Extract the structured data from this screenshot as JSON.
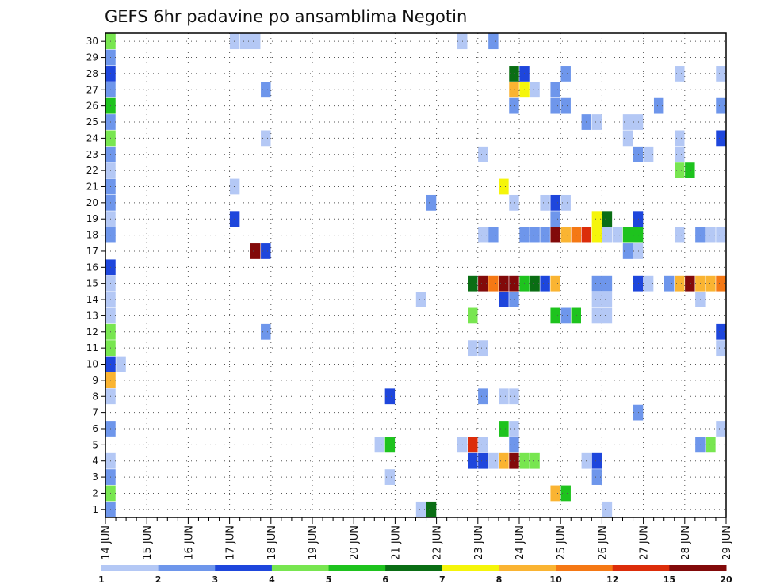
{
  "chart_data": {
    "type": "heatmap",
    "title": "GEFS 6hr padavine po ansamblima Negotin",
    "xlabel": "",
    "ylabel": "",
    "x_ticks": [
      "14 JUN",
      "15 JUN",
      "16 JUN",
      "17 JUN",
      "18 JUN",
      "19 JUN",
      "20 JUN",
      "21 JUN",
      "22 JUN",
      "23 JUN",
      "24 JUN",
      "25 JUN",
      "26 JUN",
      "27 JUN",
      "28 JUN",
      "29 JUN"
    ],
    "y_ticks": [
      "1",
      "2",
      "3",
      "4",
      "5",
      "6",
      "7",
      "8",
      "9",
      "10",
      "11",
      "12",
      "13",
      "14",
      "15",
      "16",
      "17",
      "18",
      "19",
      "20",
      "21",
      "22",
      "23",
      "24",
      "25",
      "26",
      "27",
      "28",
      "29",
      "30"
    ],
    "x_step_hours": 6,
    "grid": true,
    "colorbar": {
      "position": "bottom",
      "labels": [
        "1",
        "2",
        "3",
        "4",
        "5",
        "6",
        "7",
        "8",
        "10",
        "12",
        "15",
        "20"
      ],
      "colors": [
        "#b4c8f5",
        "#6e96eb",
        "#1e46dc",
        "#78e650",
        "#1ec31e",
        "#0a6e14",
        "#f5f50a",
        "#fab432",
        "#f57814",
        "#dc2d0a",
        "#820a0a"
      ]
    },
    "cells": [
      {
        "t": 0,
        "m": 30,
        "c": 4
      },
      {
        "t": 0,
        "m": 29,
        "c": 2
      },
      {
        "t": 0,
        "m": 28,
        "c": 3
      },
      {
        "t": 0,
        "m": 27,
        "c": 2
      },
      {
        "t": 0,
        "m": 26,
        "c": 5
      },
      {
        "t": 0,
        "m": 25,
        "c": 2
      },
      {
        "t": 0,
        "m": 24,
        "c": 4
      },
      {
        "t": 0,
        "m": 23,
        "c": 2
      },
      {
        "t": 0,
        "m": 22,
        "c": 1
      },
      {
        "t": 0,
        "m": 21,
        "c": 2
      },
      {
        "t": 0,
        "m": 20,
        "c": 2
      },
      {
        "t": 0,
        "m": 19,
        "c": 1
      },
      {
        "t": 0,
        "m": 18,
        "c": 2
      },
      {
        "t": 0,
        "m": 16,
        "c": 3
      },
      {
        "t": 0,
        "m": 15,
        "c": 1
      },
      {
        "t": 0,
        "m": 14,
        "c": 1
      },
      {
        "t": 0,
        "m": 13,
        "c": 1
      },
      {
        "t": 0,
        "m": 12,
        "c": 4
      },
      {
        "t": 0,
        "m": 11,
        "c": 4
      },
      {
        "t": 0,
        "m": 10,
        "c": 3
      },
      {
        "t": 0,
        "m": 9,
        "c": 8
      },
      {
        "t": 0,
        "m": 8,
        "c": 1
      },
      {
        "t": 0,
        "m": 6,
        "c": 2
      },
      {
        "t": 0,
        "m": 4,
        "c": 1
      },
      {
        "t": 0,
        "m": 3,
        "c": 2
      },
      {
        "t": 0,
        "m": 2,
        "c": 4
      },
      {
        "t": 0,
        "m": 1,
        "c": 2
      },
      {
        "t": 1,
        "m": 10,
        "c": 1
      },
      {
        "t": 12,
        "m": 30,
        "c": 1
      },
      {
        "t": 13,
        "m": 30,
        "c": 1
      },
      {
        "t": 14,
        "m": 30,
        "c": 1
      },
      {
        "t": 12,
        "m": 21,
        "c": 1
      },
      {
        "t": 12,
        "m": 19,
        "c": 3
      },
      {
        "t": 14,
        "m": 17,
        "c": 11
      },
      {
        "t": 15,
        "m": 17,
        "c": 3
      },
      {
        "t": 15,
        "m": 27,
        "c": 2
      },
      {
        "t": 15,
        "m": 24,
        "c": 1
      },
      {
        "t": 15,
        "m": 12,
        "c": 2
      },
      {
        "t": 26,
        "m": 5,
        "c": 1
      },
      {
        "t": 27,
        "m": 5,
        "c": 5
      },
      {
        "t": 27,
        "m": 8,
        "c": 3
      },
      {
        "t": 27,
        "m": 3,
        "c": 1
      },
      {
        "t": 30,
        "m": 14,
        "c": 1
      },
      {
        "t": 30,
        "m": 1,
        "c": 1
      },
      {
        "t": 31,
        "m": 1,
        "c": 6
      },
      {
        "t": 31,
        "m": 20,
        "c": 2
      },
      {
        "t": 34,
        "m": 30,
        "c": 1
      },
      {
        "t": 34,
        "m": 5,
        "c": 1
      },
      {
        "t": 35,
        "m": 15,
        "c": 6
      },
      {
        "t": 35,
        "m": 13,
        "c": 4
      },
      {
        "t": 35,
        "m": 11,
        "c": 1
      },
      {
        "t": 35,
        "m": 5,
        "c": 10
      },
      {
        "t": 35,
        "m": 4,
        "c": 3
      },
      {
        "t": 36,
        "m": 23,
        "c": 1
      },
      {
        "t": 36,
        "m": 18,
        "c": 1
      },
      {
        "t": 36,
        "m": 15,
        "c": 11
      },
      {
        "t": 36,
        "m": 11,
        "c": 1
      },
      {
        "t": 36,
        "m": 8,
        "c": 2
      },
      {
        "t": 36,
        "m": 5,
        "c": 1
      },
      {
        "t": 36,
        "m": 4,
        "c": 3
      },
      {
        "t": 37,
        "m": 30,
        "c": 2
      },
      {
        "t": 37,
        "m": 18,
        "c": 2
      },
      {
        "t": 37,
        "m": 15,
        "c": 9
      },
      {
        "t": 37,
        "m": 4,
        "c": 1
      },
      {
        "t": 38,
        "m": 21,
        "c": 7
      },
      {
        "t": 38,
        "m": 15,
        "c": 11
      },
      {
        "t": 38,
        "m": 14,
        "c": 3
      },
      {
        "t": 38,
        "m": 8,
        "c": 1
      },
      {
        "t": 38,
        "m": 6,
        "c": 5
      },
      {
        "t": 38,
        "m": 4,
        "c": 8
      },
      {
        "t": 39,
        "m": 28,
        "c": 6
      },
      {
        "t": 39,
        "m": 27,
        "c": 8
      },
      {
        "t": 39,
        "m": 26,
        "c": 2
      },
      {
        "t": 39,
        "m": 20,
        "c": 1
      },
      {
        "t": 39,
        "m": 15,
        "c": 11
      },
      {
        "t": 39,
        "m": 14,
        "c": 2
      },
      {
        "t": 39,
        "m": 8,
        "c": 1
      },
      {
        "t": 39,
        "m": 6,
        "c": 1
      },
      {
        "t": 39,
        "m": 5,
        "c": 2
      },
      {
        "t": 39,
        "m": 4,
        "c": 11
      },
      {
        "t": 40,
        "m": 28,
        "c": 3
      },
      {
        "t": 40,
        "m": 27,
        "c": 7
      },
      {
        "t": 40,
        "m": 18,
        "c": 2
      },
      {
        "t": 40,
        "m": 15,
        "c": 5
      },
      {
        "t": 40,
        "m": 4,
        "c": 4
      },
      {
        "t": 41,
        "m": 27,
        "c": 1
      },
      {
        "t": 41,
        "m": 18,
        "c": 2
      },
      {
        "t": 41,
        "m": 15,
        "c": 6
      },
      {
        "t": 41,
        "m": 4,
        "c": 4
      },
      {
        "t": 42,
        "m": 20,
        "c": 1
      },
      {
        "t": 42,
        "m": 18,
        "c": 2
      },
      {
        "t": 42,
        "m": 15,
        "c": 3
      },
      {
        "t": 43,
        "m": 27,
        "c": 2
      },
      {
        "t": 43,
        "m": 26,
        "c": 2
      },
      {
        "t": 43,
        "m": 20,
        "c": 3
      },
      {
        "t": 43,
        "m": 19,
        "c": 2
      },
      {
        "t": 43,
        "m": 18,
        "c": 11
      },
      {
        "t": 43,
        "m": 15,
        "c": 8
      },
      {
        "t": 43,
        "m": 13,
        "c": 5
      },
      {
        "t": 43,
        "m": 2,
        "c": 8
      },
      {
        "t": 44,
        "m": 28,
        "c": 2
      },
      {
        "t": 44,
        "m": 26,
        "c": 2
      },
      {
        "t": 44,
        "m": 20,
        "c": 1
      },
      {
        "t": 44,
        "m": 18,
        "c": 8
      },
      {
        "t": 44,
        "m": 13,
        "c": 2
      },
      {
        "t": 44,
        "m": 2,
        "c": 5
      },
      {
        "t": 45,
        "m": 18,
        "c": 9
      },
      {
        "t": 45,
        "m": 13,
        "c": 5
      },
      {
        "t": 46,
        "m": 25,
        "c": 2
      },
      {
        "t": 46,
        "m": 18,
        "c": 10
      },
      {
        "t": 46,
        "m": 4,
        "c": 1
      },
      {
        "t": 47,
        "m": 25,
        "c": 1
      },
      {
        "t": 47,
        "m": 19,
        "c": 7
      },
      {
        "t": 47,
        "m": 18,
        "c": 7
      },
      {
        "t": 47,
        "m": 15,
        "c": 2
      },
      {
        "t": 47,
        "m": 14,
        "c": 1
      },
      {
        "t": 47,
        "m": 13,
        "c": 1
      },
      {
        "t": 47,
        "m": 4,
        "c": 3
      },
      {
        "t": 47,
        "m": 3,
        "c": 2
      },
      {
        "t": 48,
        "m": 19,
        "c": 6
      },
      {
        "t": 48,
        "m": 18,
        "c": 1
      },
      {
        "t": 48,
        "m": 15,
        "c": 2
      },
      {
        "t": 48,
        "m": 14,
        "c": 1
      },
      {
        "t": 48,
        "m": 13,
        "c": 1
      },
      {
        "t": 48,
        "m": 1,
        "c": 1
      },
      {
        "t": 49,
        "m": 18,
        "c": 1
      },
      {
        "t": 50,
        "m": 18,
        "c": 5
      },
      {
        "t": 50,
        "m": 17,
        "c": 2
      },
      {
        "t": 50,
        "m": 24,
        "c": 1
      },
      {
        "t": 50,
        "m": 25,
        "c": 1
      },
      {
        "t": 51,
        "m": 25,
        "c": 1
      },
      {
        "t": 51,
        "m": 23,
        "c": 2
      },
      {
        "t": 51,
        "m": 19,
        "c": 3
      },
      {
        "t": 51,
        "m": 18,
        "c": 5
      },
      {
        "t": 51,
        "m": 17,
        "c": 1
      },
      {
        "t": 51,
        "m": 15,
        "c": 3
      },
      {
        "t": 51,
        "m": 7,
        "c": 2
      },
      {
        "t": 52,
        "m": 23,
        "c": 1
      },
      {
        "t": 52,
        "m": 15,
        "c": 1
      },
      {
        "t": 53,
        "m": 26,
        "c": 2
      },
      {
        "t": 54,
        "m": 15,
        "c": 2
      },
      {
        "t": 55,
        "m": 28,
        "c": 1
      },
      {
        "t": 55,
        "m": 24,
        "c": 1
      },
      {
        "t": 55,
        "m": 23,
        "c": 1
      },
      {
        "t": 55,
        "m": 22,
        "c": 4
      },
      {
        "t": 55,
        "m": 18,
        "c": 1
      },
      {
        "t": 55,
        "m": 15,
        "c": 8
      },
      {
        "t": 56,
        "m": 22,
        "c": 5
      },
      {
        "t": 56,
        "m": 15,
        "c": 11
      },
      {
        "t": 57,
        "m": 18,
        "c": 2
      },
      {
        "t": 57,
        "m": 15,
        "c": 8
      },
      {
        "t": 57,
        "m": 14,
        "c": 1
      },
      {
        "t": 57,
        "m": 5,
        "c": 2
      },
      {
        "t": 58,
        "m": 18,
        "c": 1
      },
      {
        "t": 58,
        "m": 15,
        "c": 8
      },
      {
        "t": 58,
        "m": 5,
        "c": 4
      },
      {
        "t": 59,
        "m": 28,
        "c": 1
      },
      {
        "t": 59,
        "m": 26,
        "c": 2
      },
      {
        "t": 59,
        "m": 24,
        "c": 3
      },
      {
        "t": 59,
        "m": 18,
        "c": 1
      },
      {
        "t": 59,
        "m": 15,
        "c": 9
      },
      {
        "t": 59,
        "m": 12,
        "c": 3
      },
      {
        "t": 59,
        "m": 11,
        "c": 1
      },
      {
        "t": 59,
        "m": 6,
        "c": 1
      }
    ]
  }
}
